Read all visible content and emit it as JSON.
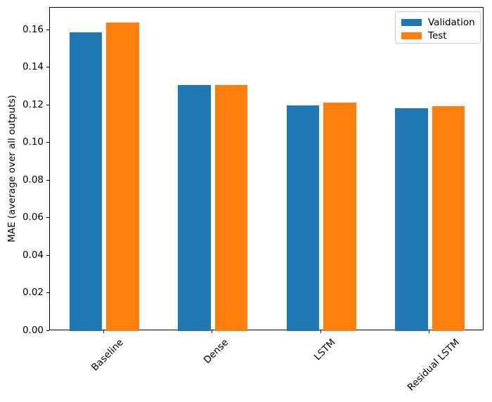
{
  "chart_data": {
    "type": "bar",
    "title": "",
    "categories": [
      "Baseline",
      "Dense",
      "LSTM",
      "Residual LSTM"
    ],
    "series": [
      {
        "name": "Validation",
        "color": "#1f77b4",
        "values": [
          0.159,
          0.131,
          0.12,
          0.1185
        ]
      },
      {
        "name": "Test",
        "color": "#ff7f0e",
        "values": [
          0.164,
          0.131,
          0.1215,
          0.1195
        ]
      }
    ],
    "xlabel": "",
    "ylabel": "MAE (average over all outputs)",
    "ylim": [
      0,
      0.172
    ],
    "ytick_values": [
      0.0,
      0.02,
      0.04,
      0.06,
      0.08,
      0.1,
      0.12,
      0.14,
      0.16
    ],
    "ytick_labels": [
      "0.00",
      "0.02",
      "0.04",
      "0.06",
      "0.08",
      "0.10",
      "0.12",
      "0.14",
      "0.16"
    ],
    "xtick_rotation": 45,
    "grid": false,
    "legend_position": "upper right",
    "bar_width_frac": 0.3,
    "bar_offset_frac": 0.17
  }
}
